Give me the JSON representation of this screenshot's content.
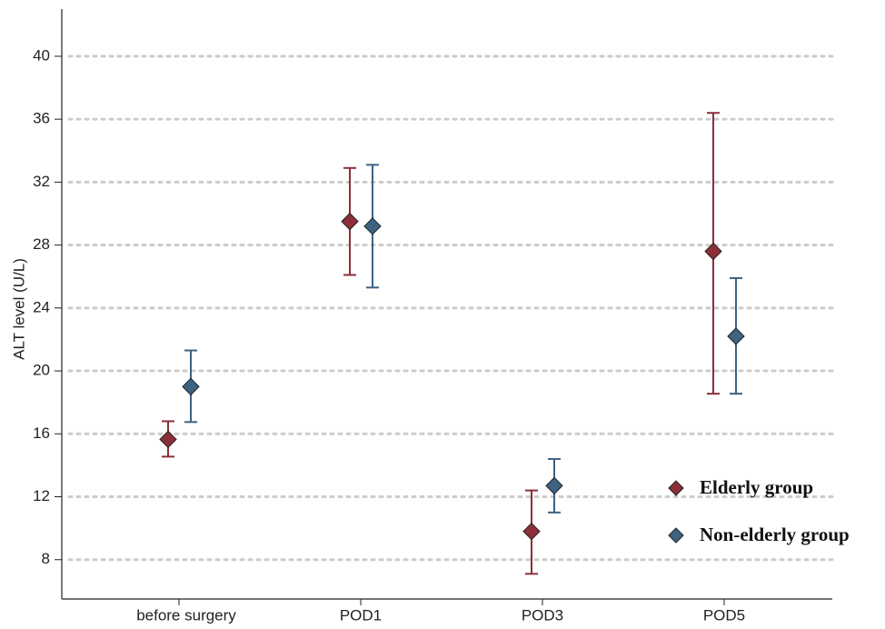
{
  "chart_data": {
    "type": "errorbar",
    "y_label": "ALT level (U/L)",
    "categories": [
      "before surgery",
      "POD1",
      "POD3",
      "POD5"
    ],
    "series": [
      {
        "name": "Elderly group",
        "color": "#8c2f38",
        "values": [
          15.65,
          29.5,
          9.8,
          27.6
        ],
        "lower": [
          14.55,
          26.1,
          7.1,
          18.55
        ],
        "upper": [
          16.8,
          32.9,
          12.4,
          36.4
        ]
      },
      {
        "name": "Non-elderly group",
        "color": "#3d6283",
        "values": [
          19.0,
          29.2,
          12.7,
          22.2
        ],
        "lower": [
          16.75,
          25.3,
          11.0,
          18.55
        ],
        "upper": [
          21.3,
          33.1,
          14.4,
          25.9
        ]
      }
    ],
    "ylim": [
      5.5,
      43
    ],
    "yticks": [
      8,
      12,
      16,
      20,
      24,
      28,
      32,
      36,
      40
    ],
    "grid": true,
    "legend": "lower right"
  }
}
